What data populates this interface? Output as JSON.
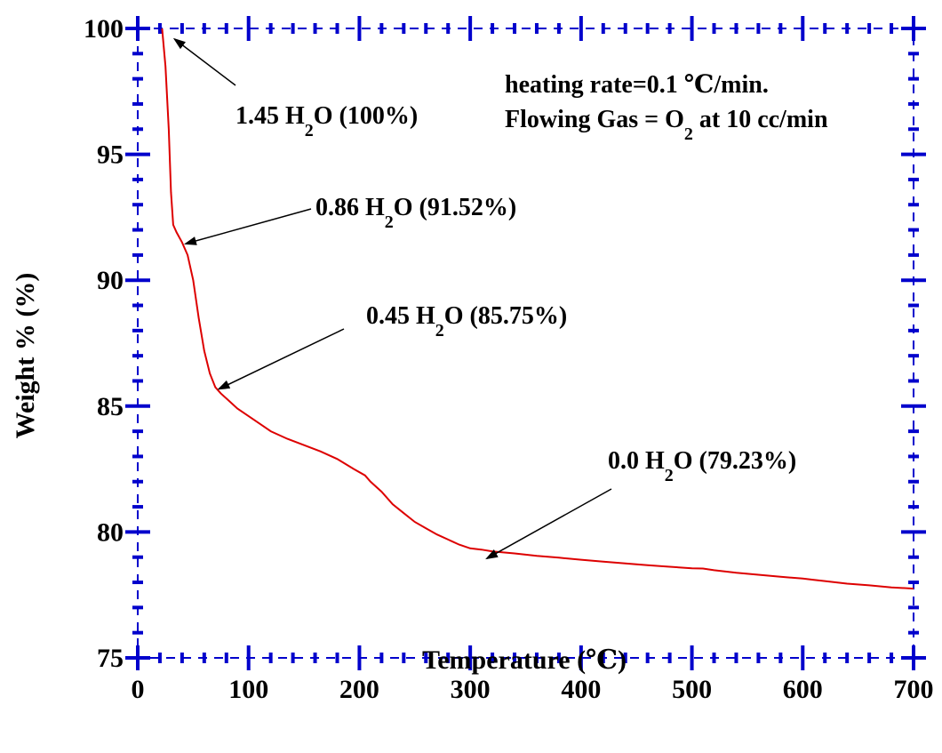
{
  "chart_data": {
    "type": "line",
    "xlabel": "Temperature (℃)",
    "ylabel": "Weight % (%)",
    "xlim": [
      0,
      700
    ],
    "ylim": [
      75,
      100
    ],
    "x_ticks": [
      0,
      100,
      200,
      300,
      400,
      500,
      600,
      700
    ],
    "y_ticks": [
      75,
      80,
      85,
      90,
      95,
      100
    ],
    "x_tick_labels": [
      "0",
      "100",
      "200",
      "300",
      "400",
      "500",
      "600",
      "700"
    ],
    "y_tick_labels": [
      "75",
      "80",
      "85",
      "90",
      "95",
      "100"
    ],
    "grid": false,
    "axis_color": "#0000CC",
    "line_color": "#DD0000",
    "series": [
      {
        "x": [
          22,
          25,
          28,
          30,
          32,
          35,
          40,
          45,
          50,
          55,
          60,
          65,
          70,
          75,
          80,
          90,
          100,
          110,
          120,
          135,
          150,
          165,
          180,
          195,
          205,
          210,
          220,
          230,
          240,
          250,
          260,
          270,
          280,
          290,
          300,
          310,
          320,
          340,
          360,
          380,
          400,
          420,
          440,
          460,
          480,
          500,
          510,
          520,
          540,
          560,
          580,
          600,
          610,
          620,
          640,
          660,
          680,
          700
        ],
        "y": [
          100,
          98.5,
          96,
          93.5,
          92.2,
          91.9,
          91.5,
          91.0,
          90.0,
          88.5,
          87.2,
          86.3,
          85.75,
          85.5,
          85.3,
          84.9,
          84.6,
          84.3,
          84.0,
          83.7,
          83.45,
          83.2,
          82.9,
          82.5,
          82.25,
          82.0,
          81.6,
          81.1,
          80.75,
          80.4,
          80.15,
          79.9,
          79.7,
          79.5,
          79.35,
          79.3,
          79.23,
          79.15,
          79.05,
          78.98,
          78.9,
          78.82,
          78.75,
          78.68,
          78.62,
          78.56,
          78.55,
          78.48,
          78.38,
          78.3,
          78.22,
          78.15,
          78.1,
          78.05,
          77.95,
          77.88,
          77.8,
          77.75
        ]
      }
    ],
    "annotations": [
      {
        "text": "1.45 H",
        "sub": "2",
        "after": "O (100%)",
        "point": [
          22,
          100
        ]
      },
      {
        "text": "0.86 H",
        "sub": "2",
        "after": "O (91.52%)",
        "point": [
          40,
          91.52
        ]
      },
      {
        "text": "0.45 H",
        "sub": "2",
        "after": "O (85.75%)",
        "point": [
          70,
          85.75
        ]
      },
      {
        "text": "0.0 H",
        "sub": "2",
        "after": "O (79.23%)",
        "point": [
          315,
          79.23
        ]
      }
    ],
    "notes": [
      {
        "text": "heating rate=0.1 ℃/min."
      },
      {
        "text": "Flowing Gas = O",
        "sub": "2",
        "after": " at 10 cc/min"
      }
    ]
  }
}
